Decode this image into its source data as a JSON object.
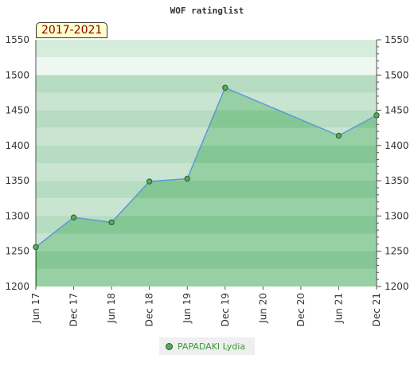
{
  "chart_data": {
    "type": "area",
    "title": "WOF ratinglist",
    "period_label": "2017-2021",
    "ylim": [
      1200,
      1550
    ],
    "yticks": [
      1200,
      1250,
      1300,
      1350,
      1400,
      1450,
      1500,
      1550
    ],
    "x_categories": [
      "Jun 17",
      "Dec 17",
      "Jun 18",
      "Dec 18",
      "Jun 19",
      "Dec 19",
      "Jun 20",
      "Dec 20",
      "Jun 21",
      "Dec 21"
    ],
    "series": [
      {
        "name": "PAPADAKI Lydia",
        "points": [
          {
            "x": "Jun 17",
            "y": 1256
          },
          {
            "x": "Dec 17",
            "y": 1298
          },
          {
            "x": "Jun 18",
            "y": 1291
          },
          {
            "x": "Dec 18",
            "y": 1349
          },
          {
            "x": "Jun 19",
            "y": 1353
          },
          {
            "x": "Dec 19",
            "y": 1482
          },
          {
            "x": "Jun 21",
            "y": 1414
          },
          {
            "x": "Dec 21",
            "y": 1443
          }
        ]
      }
    ],
    "colors": {
      "line": "#5b9bd5",
      "marker": "#5aa85a",
      "legend_text": "#3a9a3a",
      "period_text": "#8b0000"
    },
    "legend_position": "bottom-center"
  }
}
